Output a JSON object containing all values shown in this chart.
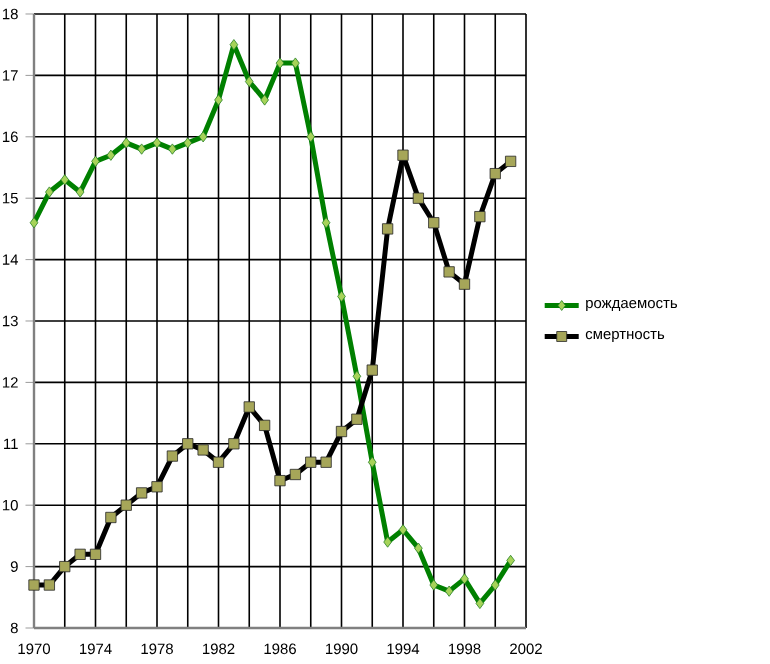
{
  "chart_data": {
    "type": "line",
    "x": [
      1970,
      1971,
      1972,
      1973,
      1974,
      1975,
      1976,
      1977,
      1978,
      1979,
      1980,
      1981,
      1982,
      1983,
      1984,
      1985,
      1986,
      1987,
      1988,
      1989,
      1990,
      1991,
      1992,
      1993,
      1994,
      1995,
      1996,
      1997,
      1998,
      1999,
      2000,
      2001
    ],
    "series": [
      {
        "name": "рождаемость",
        "color": "#008000",
        "marker": "diamond",
        "values": [
          14.6,
          15.1,
          15.3,
          15.1,
          15.6,
          15.7,
          15.9,
          15.8,
          15.9,
          15.8,
          15.9,
          16.0,
          16.6,
          17.5,
          16.9,
          16.6,
          17.2,
          17.2,
          16.0,
          14.6,
          13.4,
          12.1,
          10.7,
          9.4,
          9.6,
          9.3,
          8.7,
          8.6,
          8.8,
          8.4,
          8.7,
          9.1
        ]
      },
      {
        "name": "смертность",
        "color": "#000000",
        "marker": "square",
        "values": [
          8.7,
          8.7,
          9.0,
          9.2,
          9.2,
          9.8,
          10.0,
          10.2,
          10.3,
          10.8,
          11.0,
          10.9,
          10.7,
          11.0,
          11.6,
          11.3,
          10.4,
          10.5,
          10.7,
          10.7,
          11.2,
          11.4,
          12.2,
          14.5,
          15.7,
          15.0,
          14.6,
          13.8,
          13.6,
          14.7,
          15.4,
          15.6
        ]
      }
    ],
    "xlim": [
      1970,
      2002
    ],
    "xticks": [
      1970,
      {
        "value": 1972,
        "label": null
      },
      1974,
      {
        "value": 1976,
        "label": null
      },
      1978,
      {
        "value": 1980,
        "label": null
      },
      1982,
      {
        "value": 1984,
        "label": null
      },
      1986,
      {
        "value": 1988,
        "label": null
      },
      1990,
      {
        "value": 1992,
        "label": null
      },
      1994,
      {
        "value": 1996,
        "label": null
      },
      1998,
      {
        "value": 2000,
        "label": null
      },
      2002
    ],
    "ylim": [
      8,
      18
    ],
    "yticks": [
      8,
      9,
      10,
      11,
      12,
      13,
      14,
      15,
      16,
      17,
      18
    ],
    "grid": true,
    "legend": "right",
    "line_style": "solid"
  }
}
